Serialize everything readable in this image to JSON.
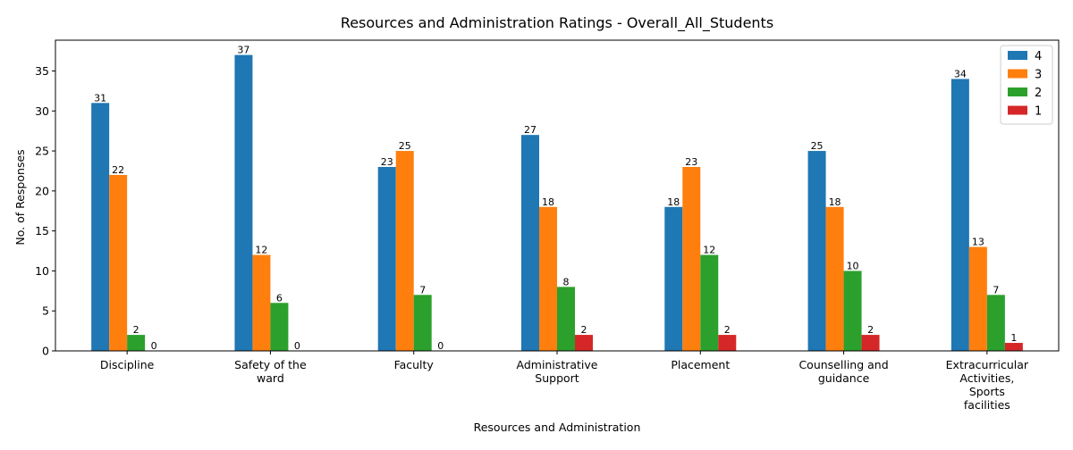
{
  "chart_data": {
    "type": "bar",
    "title": "Resources and Administration Ratings - Overall_All_Students",
    "xlabel": "Resources and Administration",
    "ylabel": "No. of Responses",
    "categories": [
      [
        "Discipline"
      ],
      [
        "Safety of the",
        "ward"
      ],
      [
        "Faculty"
      ],
      [
        "Administrative",
        "Support"
      ],
      [
        "Placement"
      ],
      [
        "Counselling and",
        "guidance"
      ],
      [
        "Extracurricular",
        "Activities,",
        "Sports",
        "facilities"
      ]
    ],
    "series": [
      {
        "name": "4",
        "color": "#1f77b4",
        "values": [
          31,
          37,
          23,
          27,
          18,
          25,
          34
        ]
      },
      {
        "name": "3",
        "color": "#ff7f0e",
        "values": [
          22,
          12,
          25,
          18,
          23,
          18,
          13
        ]
      },
      {
        "name": "2",
        "color": "#2ca02c",
        "values": [
          2,
          6,
          7,
          8,
          12,
          10,
          7
        ]
      },
      {
        "name": "1",
        "color": "#d62728",
        "values": [
          0,
          0,
          0,
          2,
          2,
          2,
          1
        ]
      }
    ],
    "ylim": [
      0,
      38.85
    ],
    "yticks": [
      0,
      5,
      10,
      15,
      20,
      25,
      30,
      35
    ],
    "legend_position": "top-right",
    "grid": false
  }
}
